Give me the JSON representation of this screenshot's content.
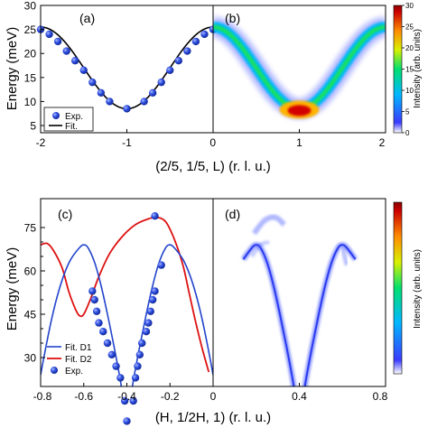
{
  "chart_data": [
    {
      "id": "a",
      "panel_label": "(a)",
      "type": "scatter",
      "ylabel": "Energy (meV)",
      "xlim": [
        -2,
        0
      ],
      "ylim": [
        3.5,
        30
      ],
      "yticks": [
        5,
        10,
        15,
        20,
        25,
        30
      ],
      "xticks": [
        -2,
        -1,
        0
      ],
      "legend": {
        "placement": "bottom-left",
        "exp_label": "Exp.",
        "fit_label": "Fit."
      },
      "exp_points": [
        {
          "x": -2.0,
          "y": 25.0
        },
        {
          "x": -1.9,
          "y": 24.0
        },
        {
          "x": -1.8,
          "y": 22.5
        },
        {
          "x": -1.7,
          "y": 20.5
        },
        {
          "x": -1.6,
          "y": 18.5
        },
        {
          "x": -1.5,
          "y": 16.5
        },
        {
          "x": -1.4,
          "y": 14.0
        },
        {
          "x": -1.3,
          "y": 11.8
        },
        {
          "x": -1.2,
          "y": 10.0
        },
        {
          "x": -1.0,
          "y": 8.5
        },
        {
          "x": -0.8,
          "y": 10.0
        },
        {
          "x": -0.7,
          "y": 11.8
        },
        {
          "x": -0.6,
          "y": 14.0
        },
        {
          "x": -0.5,
          "y": 16.5
        },
        {
          "x": -0.4,
          "y": 18.5
        },
        {
          "x": -0.3,
          "y": 20.5
        },
        {
          "x": -0.2,
          "y": 22.5
        },
        {
          "x": -0.1,
          "y": 24.0
        },
        {
          "x": 0.0,
          "y": 25.0
        }
      ],
      "fit": {
        "min": 8.5,
        "max": 25.5,
        "center": -1.0
      }
    },
    {
      "id": "b",
      "panel_label": "(b)",
      "type": "heatmap",
      "xlim": [
        0,
        2
      ],
      "ylim": [
        3.5,
        30
      ],
      "xticks": [
        0,
        1,
        2
      ],
      "colorbar": {
        "label": "Intensity (arb. units)",
        "ticks": [
          0,
          5,
          10,
          15,
          20,
          25,
          30
        ]
      },
      "dispersion": {
        "min": 8.5,
        "max": 25.5,
        "center": 1.0
      }
    },
    {
      "id": "c",
      "panel_label": "(c)",
      "type": "line",
      "ylabel": "Energy (meV)",
      "xlim": [
        -0.8,
        0
      ],
      "ylim": [
        20,
        85
      ],
      "yticks": [
        30,
        35,
        40,
        45,
        50,
        55,
        60,
        65,
        70,
        75
      ],
      "ytick_labels": [
        "30",
        "",
        "",
        "45",
        "",
        "",
        "60",
        "",
        "",
        "75"
      ],
      "xticks": [
        -0.8,
        -0.6,
        -0.4,
        -0.2,
        0.0
      ],
      "legend": {
        "placement": "bottom-left",
        "d1_label": "Fit.  D1",
        "d2_label": "Fit.  D2",
        "exp_label": "Exp."
      },
      "series_colors": {
        "d1": "#2244cc",
        "d2": "#dd1111",
        "exp": "#2f4fe0"
      },
      "fit_d1": [
        {
          "x": -0.8,
          "y": 24
        },
        {
          "x": -0.78,
          "y": 32
        },
        {
          "x": -0.75,
          "y": 43
        },
        {
          "x": -0.72,
          "y": 52
        },
        {
          "x": -0.69,
          "y": 59
        },
        {
          "x": -0.66,
          "y": 64
        },
        {
          "x": -0.62,
          "y": 68
        },
        {
          "x": -0.6,
          "y": 69
        },
        {
          "x": -0.58,
          "y": 68
        },
        {
          "x": -0.55,
          "y": 63
        },
        {
          "x": -0.52,
          "y": 55
        },
        {
          "x": -0.49,
          "y": 45
        },
        {
          "x": -0.46,
          "y": 34
        },
        {
          "x": -0.43,
          "y": 22
        },
        {
          "x": -0.41,
          "y": 12
        },
        {
          "x": -0.4,
          "y": 8
        },
        {
          "x": -0.39,
          "y": 12
        },
        {
          "x": -0.37,
          "y": 22
        },
        {
          "x": -0.34,
          "y": 34
        },
        {
          "x": -0.31,
          "y": 45
        },
        {
          "x": -0.28,
          "y": 55
        },
        {
          "x": -0.25,
          "y": 63
        },
        {
          "x": -0.22,
          "y": 68
        },
        {
          "x": -0.2,
          "y": 69
        },
        {
          "x": -0.18,
          "y": 68
        },
        {
          "x": -0.14,
          "y": 64
        },
        {
          "x": -0.11,
          "y": 59
        },
        {
          "x": -0.08,
          "y": 52
        },
        {
          "x": -0.05,
          "y": 43
        },
        {
          "x": -0.02,
          "y": 32
        },
        {
          "x": 0.0,
          "y": 24
        }
      ],
      "fit_d2": [
        {
          "x": -0.8,
          "y": 69
        },
        {
          "x": -0.77,
          "y": 69.5
        },
        {
          "x": -0.74,
          "y": 67
        },
        {
          "x": -0.7,
          "y": 61
        },
        {
          "x": -0.67,
          "y": 53
        },
        {
          "x": -0.64,
          "y": 47
        },
        {
          "x": -0.62,
          "y": 44.5
        },
        {
          "x": -0.6,
          "y": 45
        },
        {
          "x": -0.57,
          "y": 50
        },
        {
          "x": -0.53,
          "y": 58
        },
        {
          "x": -0.48,
          "y": 66
        },
        {
          "x": -0.42,
          "y": 72
        },
        {
          "x": -0.36,
          "y": 76
        },
        {
          "x": -0.3,
          "y": 78
        },
        {
          "x": -0.26,
          "y": 78.5
        },
        {
          "x": -0.22,
          "y": 77
        },
        {
          "x": -0.18,
          "y": 71
        },
        {
          "x": -0.14,
          "y": 62
        },
        {
          "x": -0.11,
          "y": 52
        },
        {
          "x": -0.08,
          "y": 42
        },
        {
          "x": -0.05,
          "y": 33
        },
        {
          "x": -0.02,
          "y": 25
        }
      ],
      "exp_points": [
        {
          "x": -0.55,
          "y": 50
        },
        {
          "x": -0.54,
          "y": 46
        },
        {
          "x": -0.53,
          "y": 42
        },
        {
          "x": -0.51,
          "y": 39
        },
        {
          "x": -0.49,
          "y": 35
        },
        {
          "x": -0.47,
          "y": 31
        },
        {
          "x": -0.45,
          "y": 27
        },
        {
          "x": -0.43,
          "y": 23
        },
        {
          "x": -0.41,
          "y": 15
        },
        {
          "x": -0.4,
          "y": 8
        },
        {
          "x": -0.37,
          "y": 15
        },
        {
          "x": -0.36,
          "y": 23
        },
        {
          "x": -0.35,
          "y": 27
        },
        {
          "x": -0.34,
          "y": 31
        },
        {
          "x": -0.33,
          "y": 35
        },
        {
          "x": -0.31,
          "y": 39
        },
        {
          "x": -0.3,
          "y": 42
        },
        {
          "x": -0.29,
          "y": 46
        },
        {
          "x": -0.28,
          "y": 50
        },
        {
          "x": -0.27,
          "y": 53
        },
        {
          "x": -0.24,
          "y": 62
        },
        {
          "x": -0.27,
          "y": 79
        },
        {
          "x": -0.56,
          "y": 53
        }
      ]
    },
    {
      "id": "d",
      "panel_label": "(d)",
      "type": "heatmap",
      "xlim": [
        0,
        0.8
      ],
      "ylim": [
        20,
        85
      ],
      "xticks": [
        0.0,
        0.4,
        0.8
      ],
      "xlabel": "(H, 1/2H, 1) (r. l. u.)",
      "colorbar": {
        "label": "Intensity (arb. units)",
        "ticks": []
      }
    }
  ],
  "top_xlabel": "(2/5, 1/5, L) (r. l. u.)",
  "bottom_xlabel": "(H, 1/2H, 1) (r. l. u.)",
  "colors": {
    "exp_marker": "#2f4fe0",
    "fit_line": "#000000",
    "d1_line": "#2244cc",
    "d2_line": "#dd1111"
  }
}
